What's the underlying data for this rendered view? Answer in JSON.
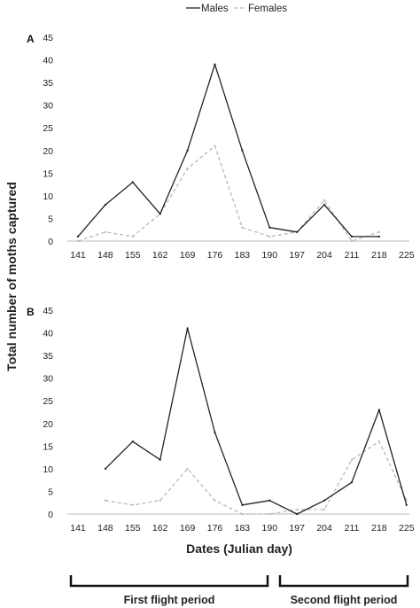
{
  "legend": {
    "position": "top-center",
    "items": [
      {
        "label": "Males",
        "color": "#222222",
        "style": "solid"
      },
      {
        "label": "Females",
        "color": "#b8b8b8",
        "style": "dashed"
      }
    ]
  },
  "ylabel": "Total number of moths captured",
  "xlabel": "Dates (Julian day)",
  "periods": [
    {
      "label": "First flight period",
      "from": 141,
      "to": 190
    },
    {
      "label": "Second flight period",
      "from": 197,
      "to": 225
    }
  ],
  "chart_data": [
    {
      "type": "line",
      "panel": "A",
      "x": [
        141,
        148,
        155,
        162,
        169,
        176,
        183,
        190,
        197,
        204,
        211,
        218,
        225
      ],
      "ylim": [
        0,
        45
      ],
      "yticks": [
        0,
        5,
        10,
        15,
        20,
        25,
        30,
        35,
        40,
        45
      ],
      "grid": false,
      "series": [
        {
          "name": "Males",
          "values": [
            1,
            8,
            13,
            6,
            20,
            39,
            20,
            3,
            2,
            8,
            1,
            1,
            null
          ]
        },
        {
          "name": "Females",
          "values": [
            0,
            2,
            1,
            6,
            16,
            21,
            3,
            1,
            2,
            9,
            0,
            2,
            null
          ]
        }
      ]
    },
    {
      "type": "line",
      "panel": "B",
      "x": [
        141,
        148,
        155,
        162,
        169,
        176,
        183,
        190,
        197,
        204,
        211,
        218,
        225
      ],
      "ylim": [
        0,
        45
      ],
      "yticks": [
        0,
        5,
        10,
        15,
        20,
        25,
        30,
        35,
        40,
        45
      ],
      "grid": false,
      "series": [
        {
          "name": "Males",
          "values": [
            null,
            10,
            16,
            12,
            41,
            18,
            2,
            3,
            0,
            3,
            7,
            23,
            2
          ]
        },
        {
          "name": "Females",
          "values": [
            null,
            3,
            2,
            3,
            10,
            3,
            0,
            0,
            1,
            1,
            12,
            16,
            3
          ]
        }
      ]
    }
  ]
}
